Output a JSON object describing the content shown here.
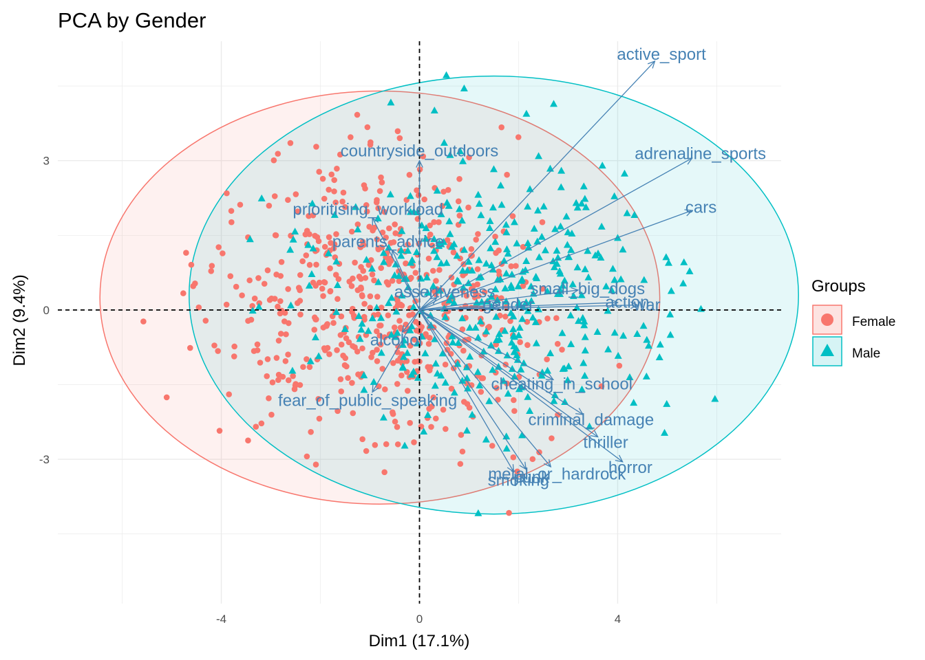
{
  "chart_data": {
    "type": "scatter",
    "title": "PCA by Gender",
    "xlabel": "Dim1 (17.1%)",
    "ylabel": "Dim2 (9.4%)",
    "xlim": [
      -7.3,
      7.3
    ],
    "ylim": [
      -5.9,
      5.4
    ],
    "xticks": [
      -4,
      0,
      4
    ],
    "yticks": [
      -3,
      0,
      3
    ],
    "grid": true,
    "legend": {
      "title": "Groups",
      "position": "right",
      "entries": [
        "Female",
        "Male"
      ]
    },
    "colors": {
      "female": "#F8766D",
      "male": "#00BFC4",
      "arrows": "#4682B4",
      "grid": "#EBEBEB"
    },
    "groups": [
      {
        "name": "Female",
        "marker": "circle",
        "ellipse": {
          "cx": -0.8,
          "cy": 0.25,
          "rx": 5.65,
          "ry": 4.15
        }
      },
      {
        "name": "Male",
        "marker": "triangle",
        "ellipse": {
          "cx": 1.5,
          "cy": 0.3,
          "rx": 6.15,
          "ry": 4.4
        }
      }
    ],
    "variables": [
      {
        "name": "active_sport",
        "x": 4.75,
        "y": 5.0
      },
      {
        "name": "adrenaline_sports",
        "x": 5.5,
        "y": 3.05
      },
      {
        "name": "cars",
        "x": 5.5,
        "y": 2.0
      },
      {
        "name": "countryside_outdoors",
        "x": 0.0,
        "y": 3.0
      },
      {
        "name": "prioritising_workload",
        "x": -0.95,
        "y": 1.85
      },
      {
        "name": "parents_advice",
        "x": -0.55,
        "y": 1.2
      },
      {
        "name": "small_big_dogs",
        "x": 3.2,
        "y": 0.4
      },
      {
        "name": "assertiveness",
        "x": 0.35,
        "y": 0.25
      },
      {
        "name": "gender",
        "x": 1.6,
        "y": 0.1
      },
      {
        "name": "action",
        "x": 4.0,
        "y": 0.15
      },
      {
        "name": "war",
        "x": 4.4,
        "y": 0.1
      },
      {
        "name": "alcohol",
        "x": -0.35,
        "y": -0.45
      },
      {
        "name": "cheating_in_school",
        "x": 2.7,
        "y": -1.4
      },
      {
        "name": "fear_of_public_speaking",
        "x": -0.95,
        "y": -1.65
      },
      {
        "name": "criminal_damage",
        "x": 3.3,
        "y": -2.1
      },
      {
        "name": "thriller",
        "x": 3.6,
        "y": -2.55
      },
      {
        "name": "horror",
        "x": 4.1,
        "y": -3.05
      },
      {
        "name": "smoking",
        "x": 1.9,
        "y": -3.25
      },
      {
        "name": "metal_or_hardrock",
        "x": 2.65,
        "y": -3.15
      },
      {
        "name": "punk",
        "x": 2.15,
        "y": -3.2
      }
    ]
  }
}
